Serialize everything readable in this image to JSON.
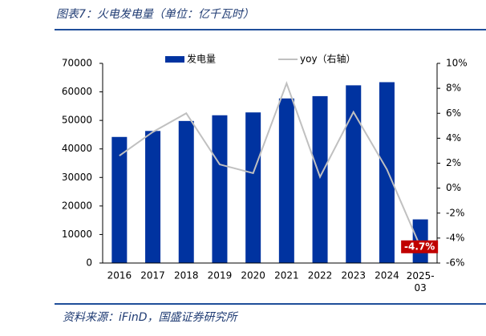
{
  "chart_data": {
    "type": "bar_line",
    "title": "图表7：火电发电量（单位：亿千瓦时）",
    "source": "资料来源：iFinD，国盛证券研究所",
    "categories": [
      "2016",
      "2017",
      "2018",
      "2019",
      "2020",
      "2021",
      "2022",
      "2023",
      "2024",
      "2025-03"
    ],
    "series": [
      {
        "name": "发电量",
        "color": "#0033a0",
        "type": "bar",
        "values": [
          44200,
          46300,
          49800,
          51800,
          52800,
          57700,
          58500,
          62300,
          63400,
          15300
        ]
      },
      {
        "name": "yoy（右轴）",
        "color": "#c0c0c0",
        "type": "line",
        "axis": "y2",
        "values": [
          2.6,
          4.5,
          6.0,
          1.9,
          1.2,
          8.4,
          0.9,
          6.1,
          1.5,
          -4.7
        ],
        "value_labels": [
          null,
          null,
          null,
          null,
          null,
          null,
          null,
          null,
          null,
          "-4.7%"
        ]
      }
    ],
    "ylim": [
      0,
      70000
    ],
    "yticks": [
      0,
      10000,
      20000,
      30000,
      40000,
      50000,
      60000,
      70000
    ],
    "y2lim": [
      -6,
      10
    ],
    "y2ticks": [
      {
        "value": -6,
        "label": "-6%"
      },
      {
        "value": -4,
        "label": "-4%"
      },
      {
        "value": -2,
        "label": "-2%"
      },
      {
        "value": 0,
        "label": "0%"
      },
      {
        "value": 2,
        "label": "2%"
      },
      {
        "value": 4,
        "label": "4%"
      },
      {
        "value": 6,
        "label": "6%"
      },
      {
        "value": 8,
        "label": "8%"
      },
      {
        "value": 10,
        "label": "10%"
      }
    ],
    "label_color": "#c00000"
  }
}
